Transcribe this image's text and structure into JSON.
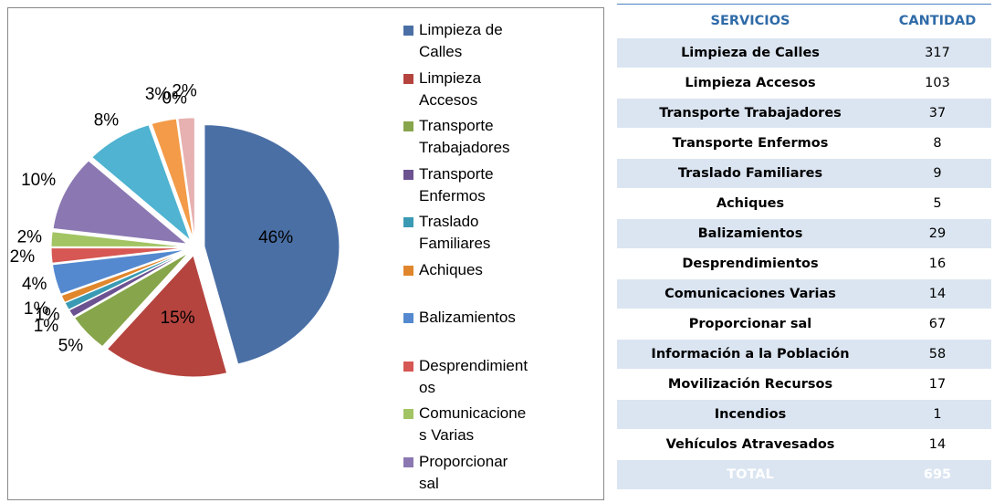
{
  "chart_data": {
    "type": "pie",
    "categories": [
      "Limpieza de Calles",
      "Limpieza Accesos",
      "Transporte Trabajadores",
      "Transporte Enfermos",
      "Traslado Familiares",
      "Achiques",
      "Balizamientos",
      "Desprendimientos",
      "Comunicaciones Varias",
      "Proporcionar sal",
      null,
      null,
      null,
      null
    ],
    "values": [
      46,
      15,
      5,
      1,
      1,
      1,
      4,
      2,
      2,
      10,
      8,
      3,
      0,
      2
    ],
    "value_labels": [
      "46%",
      "15%",
      "5%",
      "1%",
      "1%",
      "1%",
      "4%",
      "2%",
      "2%",
      "10%",
      "8%",
      "3%",
      "0%",
      "2%"
    ],
    "colors": [
      "#4a6fa5",
      "#b5443f",
      "#87a54a",
      "#6c5290",
      "#3a9ab3",
      "#e0862c",
      "#5489cf",
      "#d65753",
      "#a2c463",
      "#8b78b2",
      "#4fb3d1",
      "#f39b48",
      "#9fb8dc",
      "#e6b1b0"
    ],
    "legend": "right"
  },
  "table": {
    "headers": [
      "SERVICIOS",
      "CANTIDAD"
    ],
    "rows": [
      [
        "Limpieza de Calles",
        "317"
      ],
      [
        "Limpieza Accesos",
        "103"
      ],
      [
        "Transporte Trabajadores",
        "37"
      ],
      [
        "Transporte Enfermos",
        "8"
      ],
      [
        "Traslado Familiares",
        "9"
      ],
      [
        "Achiques",
        "5"
      ],
      [
        "Balizamientos",
        "29"
      ],
      [
        "Desprendimientos",
        "16"
      ],
      [
        "Comunicaciones Varias",
        "14"
      ],
      [
        "Proporcionar sal",
        "67"
      ],
      [
        "Información a la Población",
        "58"
      ],
      [
        "Movilización Recursos",
        "17"
      ],
      [
        "Incendios",
        "1"
      ],
      [
        "Vehículos Atravesados",
        "14"
      ]
    ],
    "total": [
      "TOTAL",
      "695"
    ]
  }
}
